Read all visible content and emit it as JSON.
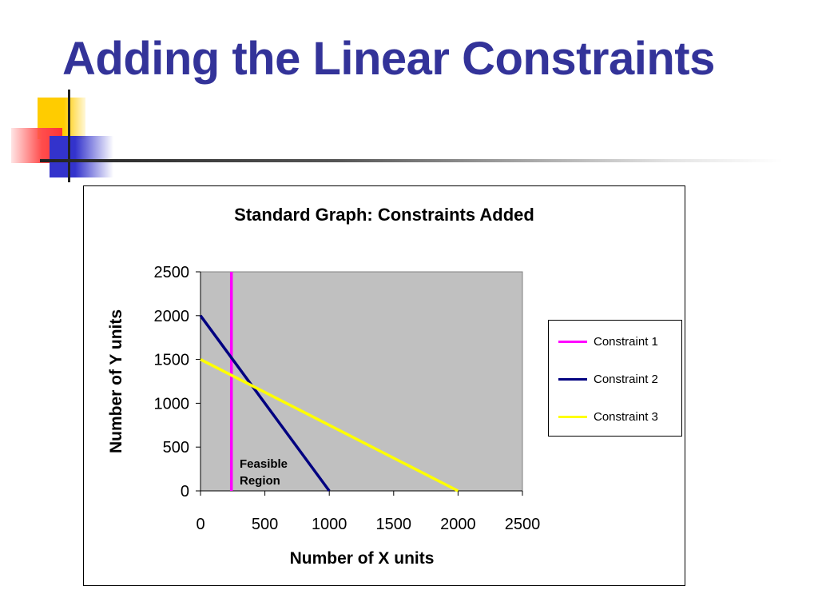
{
  "slide": {
    "title": "Adding the Linear Constraints"
  },
  "chart_data": {
    "type": "line",
    "title": "Standard Graph: Constraints Added",
    "xlabel": "Number of X units",
    "ylabel": "Number of Y units",
    "xlim": [
      0,
      2500
    ],
    "ylim": [
      0,
      2500
    ],
    "x_ticks": [
      "0",
      "500",
      "1000",
      "1500",
      "2000",
      "2500"
    ],
    "y_ticks": [
      "0",
      "500",
      "1000",
      "1500",
      "2000",
      "2500"
    ],
    "plot_background": "#c0c0c0",
    "grid": false,
    "legend_position": "right",
    "series": [
      {
        "name": "Constraint 1",
        "color": "#ff00ff",
        "points": [
          [
            240,
            0
          ],
          [
            240,
            2500
          ]
        ]
      },
      {
        "name": "Constraint 2",
        "color": "#000080",
        "points": [
          [
            0,
            2000
          ],
          [
            1000,
            0
          ]
        ]
      },
      {
        "name": "Constraint 3",
        "color": "#ffff00",
        "points": [
          [
            0,
            1500
          ],
          [
            2000,
            0
          ]
        ]
      }
    ],
    "annotation": {
      "text_line1": "Feasible",
      "text_line2": "Region"
    }
  }
}
